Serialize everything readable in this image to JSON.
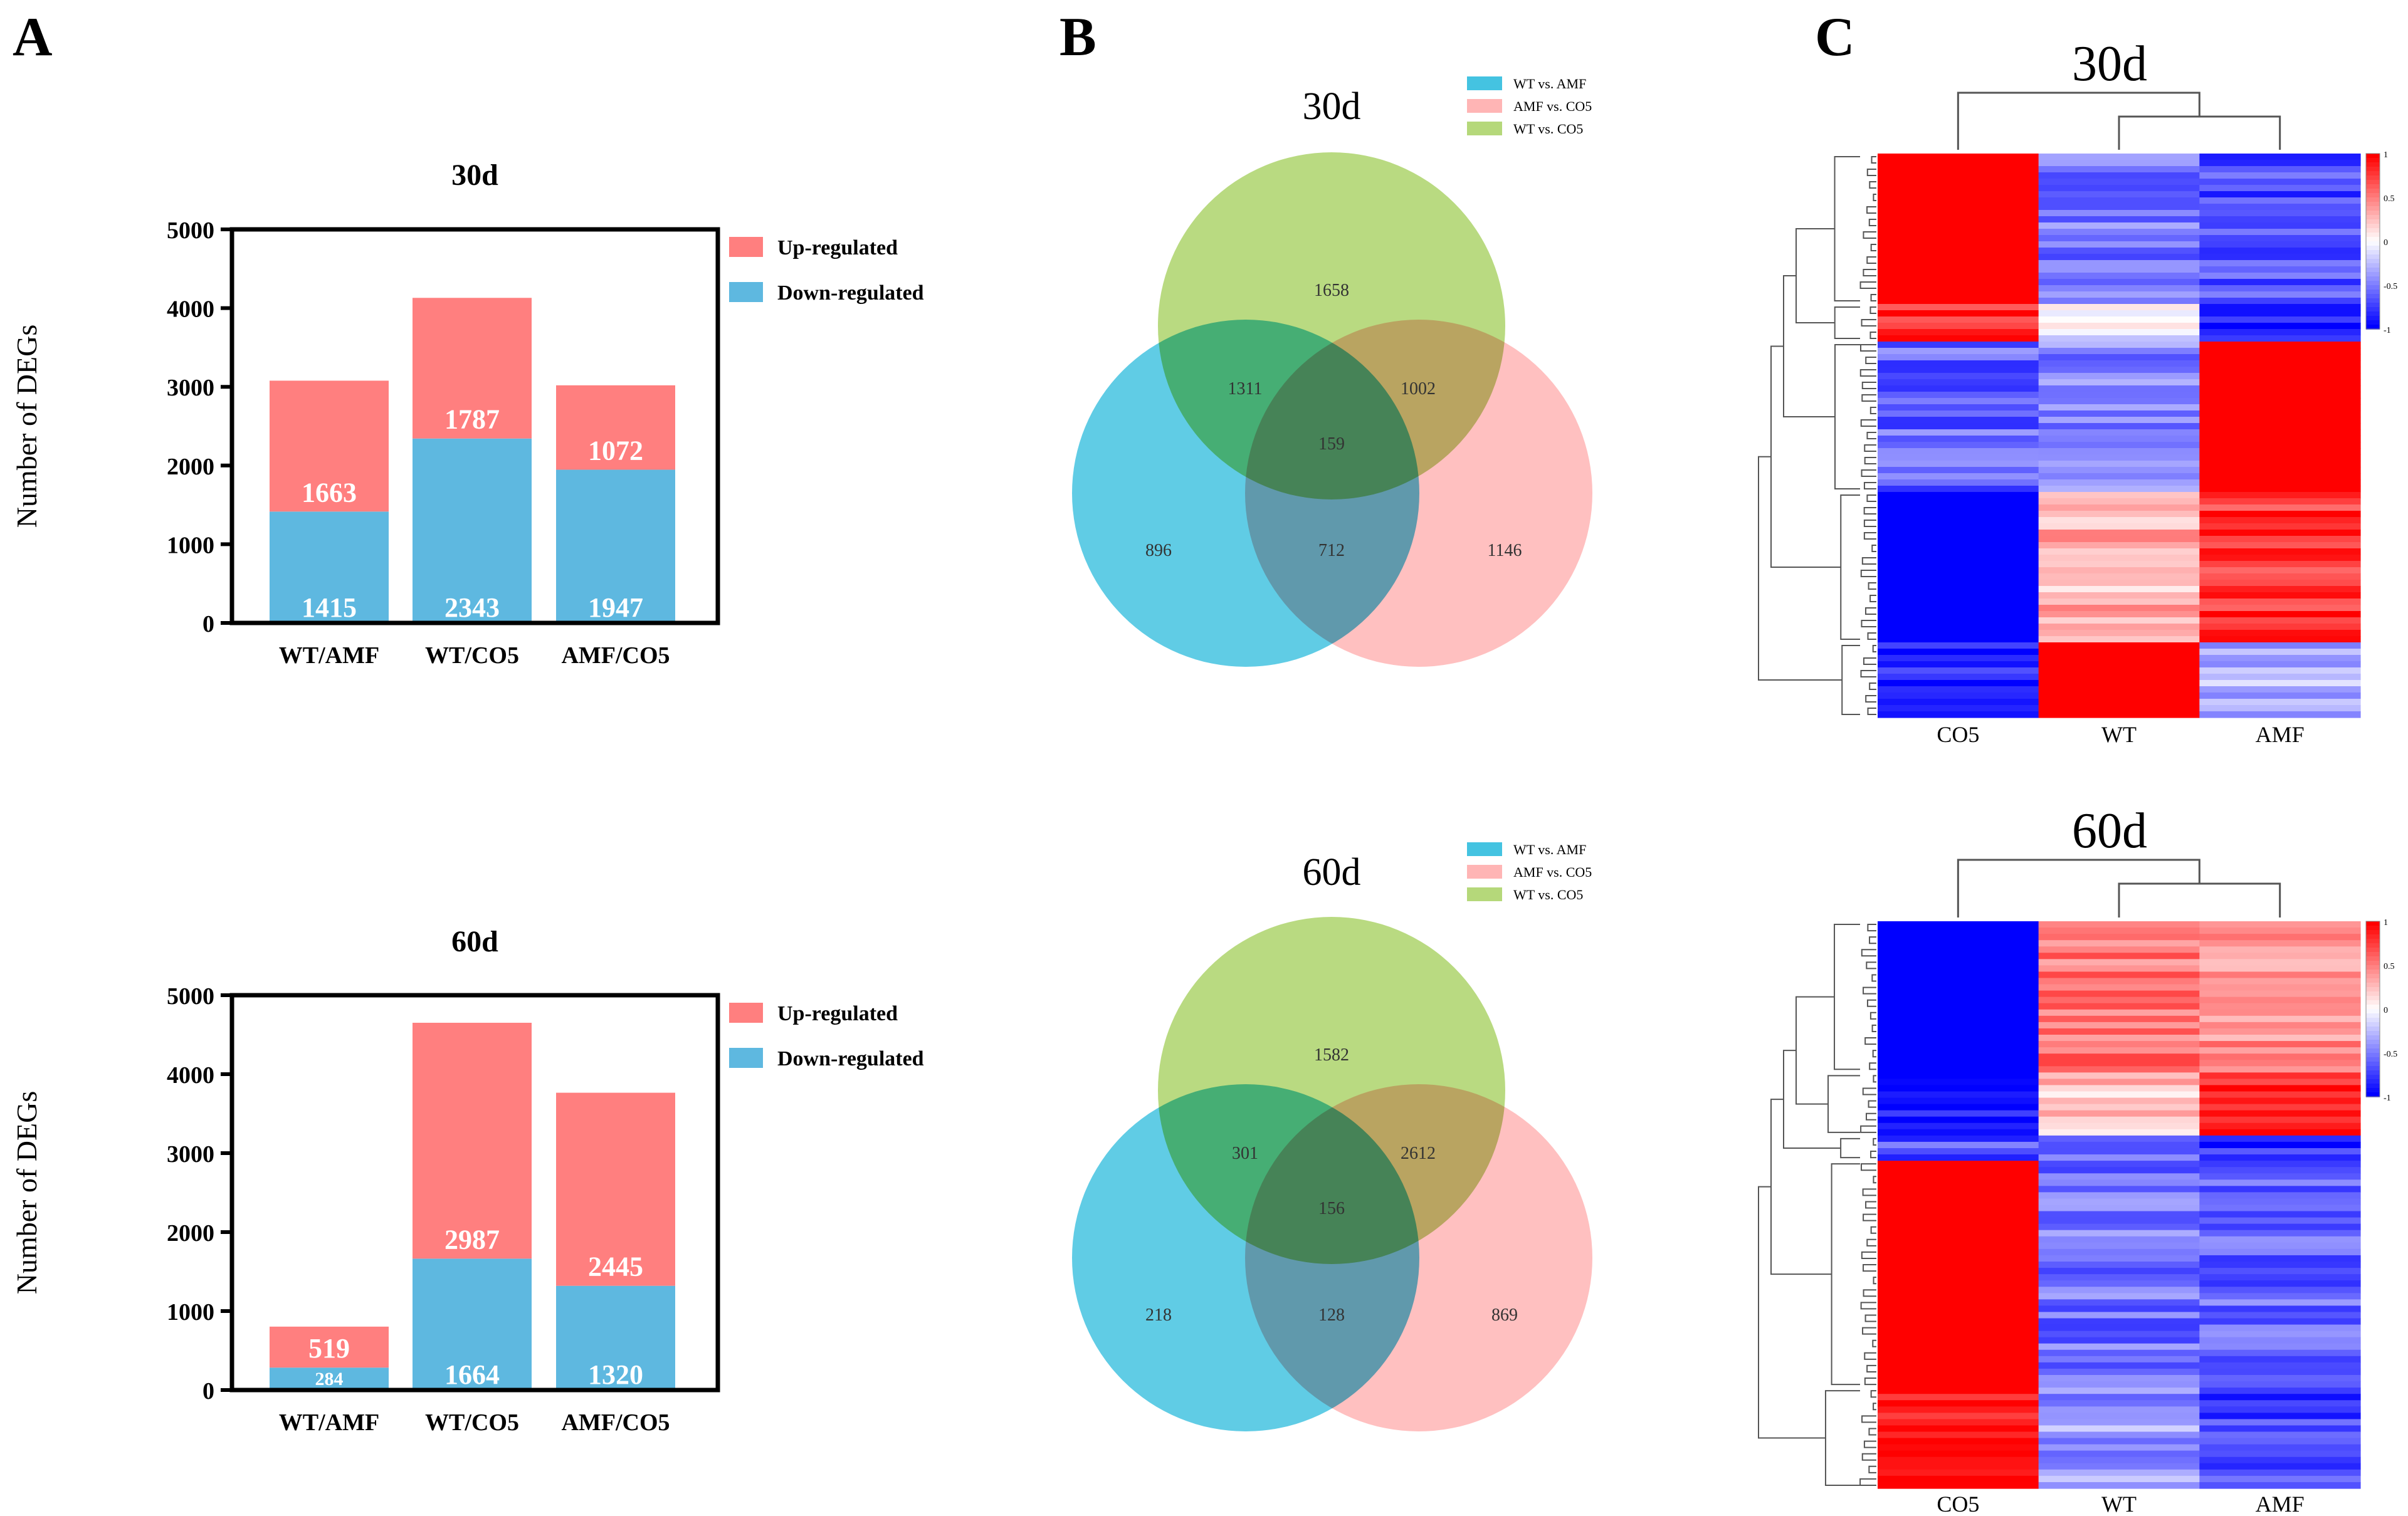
{
  "panels": {
    "a": "A",
    "b": "B",
    "c": "C"
  },
  "legend_bar": {
    "up": "Up-regulated",
    "down": "Down-regulated"
  },
  "legend_venn": {
    "set1": "WT vs. AMF",
    "set2": "AMF vs. CO5",
    "set3": "WT vs. CO5"
  },
  "colors": {
    "up": "#FF7F7F",
    "down": "#5EB8E0",
    "venn_blue": "#44C3E1",
    "venn_pink": "#FFB5B5",
    "venn_green": "#B5D87A",
    "heat_red": "#FF0000",
    "heat_white": "#FFFFFF",
    "heat_blue": "#0000FF"
  },
  "chart_data": [
    {
      "type": "bar",
      "stacked": true,
      "title": "30d",
      "ylabel": "Number of DEGs",
      "xlabel": "",
      "categories": [
        "WT/AMF",
        "WT/CO5",
        "AMF/CO5"
      ],
      "ylim": [
        0,
        5000
      ],
      "yticks": [
        "0",
        "1000",
        "2000",
        "3000",
        "4000",
        "5000"
      ],
      "series": [
        {
          "name": "Down-regulated",
          "values": [
            1415,
            2343,
            1947
          ]
        },
        {
          "name": "Up-regulated",
          "values": [
            1663,
            1787,
            1072
          ]
        }
      ],
      "legend": "right"
    },
    {
      "type": "bar",
      "stacked": true,
      "title": "60d",
      "ylabel": "Number of DEGs",
      "xlabel": "",
      "categories": [
        "WT/AMF",
        "WT/CO5",
        "AMF/CO5"
      ],
      "ylim": [
        0,
        5000
      ],
      "yticks": [
        "0",
        "1000",
        "2000",
        "3000",
        "4000",
        "5000"
      ],
      "series": [
        {
          "name": "Down-regulated",
          "values": [
            284,
            1664,
            1320
          ]
        },
        {
          "name": "Up-regulated",
          "values": [
            519,
            2987,
            2445
          ]
        }
      ],
      "legend": "right"
    },
    {
      "type": "venn",
      "title": "30d",
      "sets": [
        "WT vs. AMF",
        "AMF vs. CO5",
        "WT vs. CO5"
      ],
      "regions": {
        "green_only": "1658",
        "blue_green": "1311",
        "green_pink": "1002",
        "all": "159",
        "blue_only": "896",
        "blue_pink": "712",
        "pink_only": "1146"
      }
    },
    {
      "type": "venn",
      "title": "60d",
      "sets": [
        "WT vs. AMF",
        "AMF vs. CO5",
        "WT vs. CO5"
      ],
      "regions": {
        "green_only": "1582",
        "blue_green": "301",
        "green_pink": "2612",
        "all": "156",
        "blue_only": "218",
        "blue_pink": "128",
        "pink_only": "869"
      }
    },
    {
      "type": "heatmap",
      "title": "30d",
      "columns": [
        "CO5",
        "WT",
        "AMF"
      ],
      "scale": {
        "ticks": [
          "1",
          "0.5",
          "0",
          "-0.5",
          "-1"
        ],
        "range": [
          -1,
          1
        ]
      },
      "blocks": [
        {
          "rows": 24,
          "values": [
            1,
            -0.55,
            -0.7
          ]
        },
        {
          "rows": 6,
          "values": [
            0.85,
            -0.1,
            -0.9
          ]
        },
        {
          "rows": 24,
          "values": [
            -0.6,
            -0.5,
            1
          ]
        },
        {
          "rows": 24,
          "values": [
            -1,
            0.3,
            0.8
          ]
        },
        {
          "rows": 12,
          "values": [
            -0.85,
            1,
            -0.3
          ]
        }
      ]
    },
    {
      "type": "heatmap",
      "title": "60d",
      "columns": [
        "CO5",
        "WT",
        "AMF"
      ],
      "scale": {
        "ticks": [
          "1",
          "0.5",
          "0",
          "-0.5",
          "-1"
        ],
        "range": [
          -1,
          1
        ]
      },
      "blocks": [
        {
          "rows": 24,
          "values": [
            -1,
            0.55,
            0.45
          ]
        },
        {
          "rows": 10,
          "values": [
            -0.95,
            0.25,
            0.85
          ]
        },
        {
          "rows": 4,
          "values": [
            -0.7,
            -0.5,
            -0.85
          ]
        },
        {
          "rows": 36,
          "values": [
            1,
            -0.55,
            -0.6
          ]
        },
        {
          "rows": 16,
          "values": [
            0.95,
            -0.4,
            -0.75
          ]
        }
      ]
    }
  ]
}
